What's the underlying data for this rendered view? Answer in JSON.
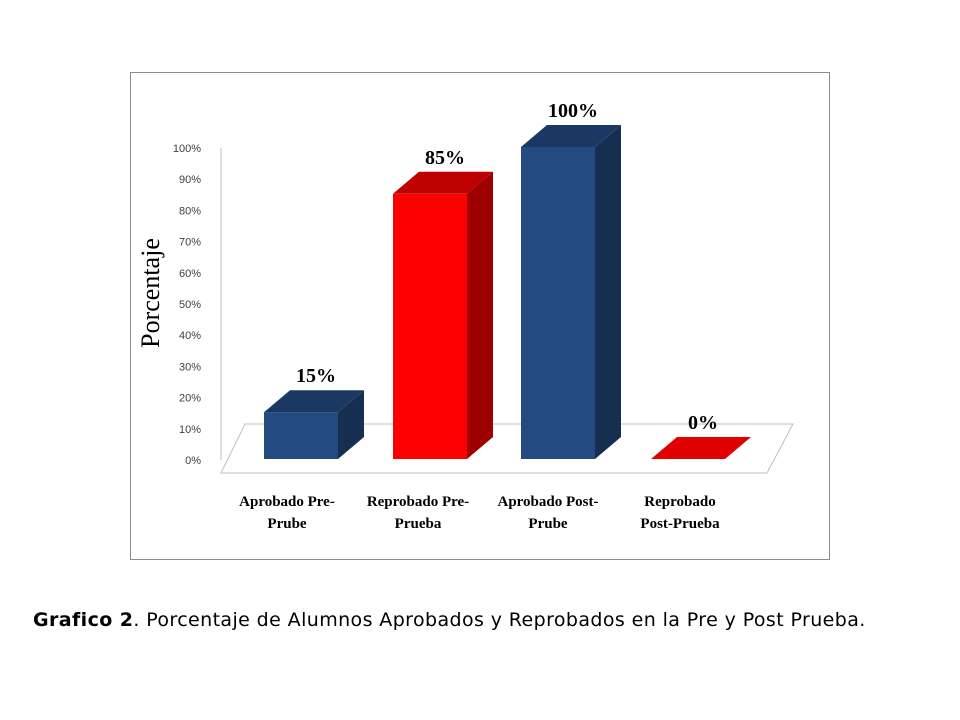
{
  "chart_data": {
    "type": "bar",
    "style": "3d-column",
    "ylabel": "Porcentaje",
    "xlabel": "",
    "ylim": [
      0,
      100
    ],
    "y_ticks": [
      "0%",
      "10%",
      "20%",
      "30%",
      "40%",
      "50%",
      "60%",
      "70%",
      "80%",
      "90%",
      "100%"
    ],
    "categories": [
      {
        "line1": "Aprobado Pre-",
        "line2": "Prube"
      },
      {
        "line1": "Reprobado Pre-",
        "line2": "Prueba"
      },
      {
        "line1": "Aprobado Post-",
        "line2": "Prube"
      },
      {
        "line1": "Reprobado",
        "line2": "Post-Prueba"
      }
    ],
    "values": [
      15,
      85,
      100,
      0
    ],
    "data_labels": [
      "15%",
      "85%",
      "100%",
      "0%"
    ],
    "bar_colors": [
      "#234b82",
      "#ff0000",
      "#234b82",
      "#e00000"
    ],
    "grid": false,
    "legend": "none"
  },
  "caption": {
    "label": "Grafico 2",
    "text": ". Porcentaje de Alumnos Aprobados y Reprobados en la Pre y Post Prueba."
  }
}
